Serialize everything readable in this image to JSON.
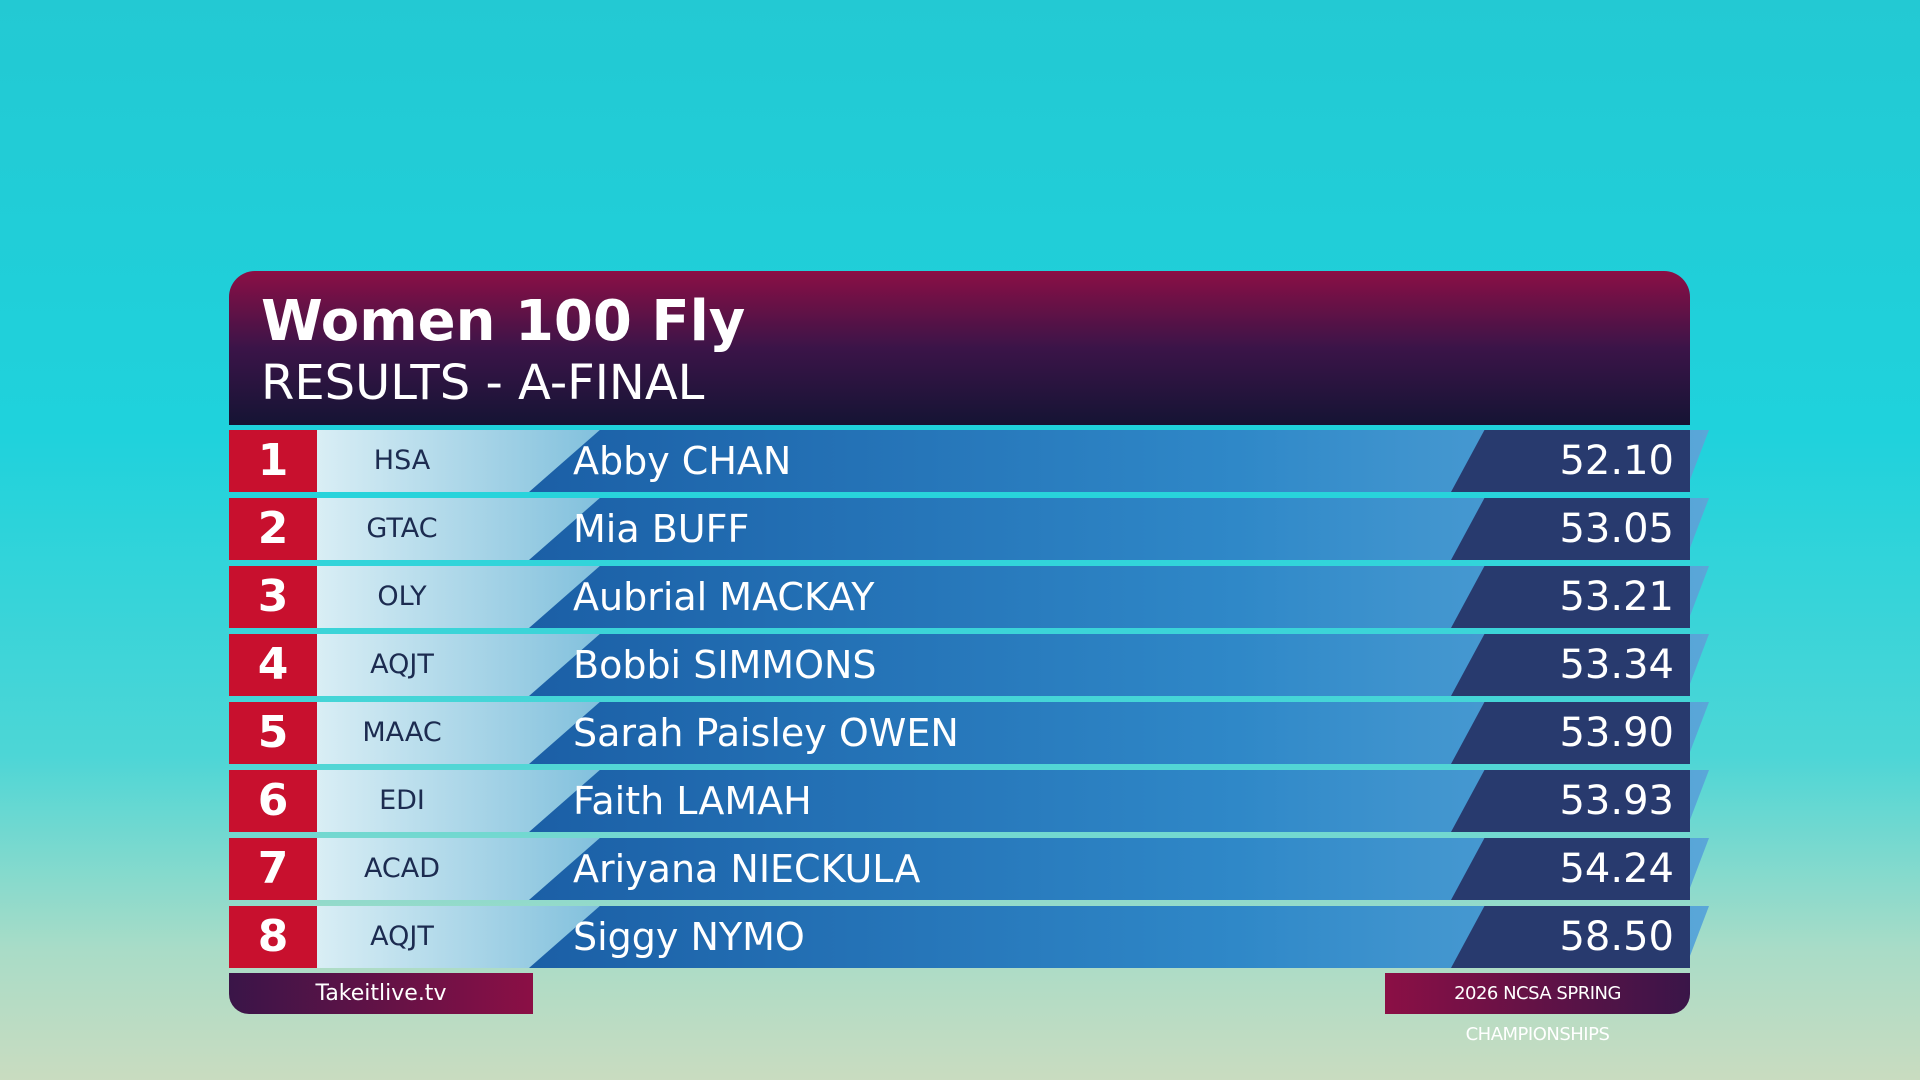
{
  "header": {
    "title": "Women 100 Fly",
    "subtitle": "RESULTS - A-FINAL"
  },
  "table": {
    "rows": [
      [
        "1",
        "HSA",
        "Abby CHAN",
        "52.10"
      ],
      [
        "2",
        "GTAC",
        "Mia BUFF",
        "53.05"
      ],
      [
        "3",
        "OLY",
        "Aubrial MACKAY",
        "53.21"
      ],
      [
        "4",
        "AQJT",
        "Bobbi SIMMONS",
        "53.34"
      ],
      [
        "5",
        "MAAC",
        "Sarah Paisley OWEN",
        "53.90"
      ],
      [
        "6",
        "EDI",
        "Faith LAMAH",
        "53.93"
      ],
      [
        "7",
        "ACAD",
        "Ariyana NIECKULA",
        "54.24"
      ],
      [
        "8",
        "AQJT",
        "Siggy NYMO",
        "58.50"
      ]
    ]
  },
  "footer": {
    "left": "Takeitlive.tv",
    "right": "2026 NCSA SPRING CHAMPIONSHIPS"
  }
}
